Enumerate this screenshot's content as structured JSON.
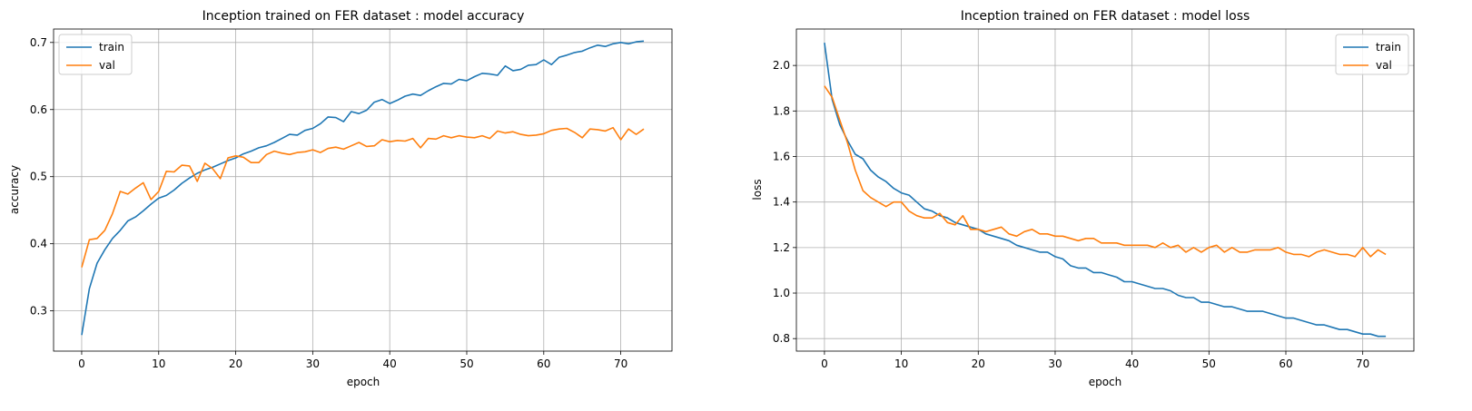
{
  "chart_data": [
    {
      "type": "line",
      "title": "Inception trained on FER dataset : model accuracy",
      "xlabel": "epoch",
      "ylabel": "accuracy",
      "xlim": [
        -3.65,
        76.65
      ],
      "ylim": [
        0.24,
        0.72
      ],
      "xticks": [
        0,
        10,
        20,
        30,
        40,
        50,
        60,
        70
      ],
      "yticks": [
        0.3,
        0.4,
        0.5,
        0.6,
        0.7
      ],
      "ytick_labels": [
        "0.3",
        "0.4",
        "0.5",
        "0.6",
        "0.7"
      ],
      "grid": true,
      "legend_position": "upper-left",
      "series": [
        {
          "name": "train",
          "color": "#1f77b4",
          "values": [
            0.264,
            0.333,
            0.371,
            0.391,
            0.408,
            0.42,
            0.434,
            0.44,
            0.449,
            0.459,
            0.468,
            0.472,
            0.48,
            0.49,
            0.498,
            0.505,
            0.51,
            0.514,
            0.519,
            0.524,
            0.528,
            0.534,
            0.538,
            0.543,
            0.546,
            0.551,
            0.557,
            0.563,
            0.562,
            0.569,
            0.572,
            0.579,
            0.589,
            0.588,
            0.582,
            0.597,
            0.594,
            0.599,
            0.611,
            0.615,
            0.609,
            0.614,
            0.62,
            0.623,
            0.621,
            0.628,
            0.634,
            0.639,
            0.638,
            0.645,
            0.643,
            0.649,
            0.654,
            0.653,
            0.651,
            0.665,
            0.658,
            0.66,
            0.666,
            0.667,
            0.674,
            0.667,
            0.678,
            0.681,
            0.685,
            0.687,
            0.692,
            0.696,
            0.694,
            0.698,
            0.7,
            0.698,
            0.701,
            0.702
          ]
        },
        {
          "name": "val",
          "color": "#ff7f0e",
          "values": [
            0.365,
            0.406,
            0.408,
            0.42,
            0.445,
            0.478,
            0.474,
            0.483,
            0.491,
            0.466,
            0.478,
            0.508,
            0.507,
            0.517,
            0.516,
            0.493,
            0.52,
            0.512,
            0.497,
            0.528,
            0.531,
            0.529,
            0.521,
            0.521,
            0.533,
            0.538,
            0.535,
            0.533,
            0.536,
            0.537,
            0.54,
            0.536,
            0.542,
            0.544,
            0.541,
            0.546,
            0.551,
            0.545,
            0.546,
            0.555,
            0.552,
            0.554,
            0.553,
            0.557,
            0.543,
            0.557,
            0.556,
            0.561,
            0.558,
            0.561,
            0.559,
            0.558,
            0.561,
            0.557,
            0.568,
            0.565,
            0.567,
            0.563,
            0.561,
            0.562,
            0.564,
            0.569,
            0.571,
            0.572,
            0.566,
            0.558,
            0.571,
            0.57,
            0.568,
            0.573,
            0.555,
            0.571,
            0.563,
            0.571
          ]
        }
      ]
    },
    {
      "type": "line",
      "title": "Inception trained on FER dataset : model loss",
      "xlabel": "epoch",
      "ylabel": "loss",
      "xlim": [
        -3.65,
        76.65
      ],
      "ylim": [
        0.745,
        2.16
      ],
      "xticks": [
        0,
        10,
        20,
        30,
        40,
        50,
        60,
        70
      ],
      "yticks": [
        0.8,
        1.0,
        1.2,
        1.4,
        1.6,
        1.8,
        2.0
      ],
      "ytick_labels": [
        "0.8",
        "1.0",
        "1.2",
        "1.4",
        "1.6",
        "1.8",
        "2.0"
      ],
      "grid": true,
      "legend_position": "upper-right",
      "series": [
        {
          "name": "train",
          "color": "#1f77b4",
          "values": [
            2.1,
            1.85,
            1.74,
            1.67,
            1.61,
            1.59,
            1.54,
            1.51,
            1.49,
            1.46,
            1.44,
            1.43,
            1.4,
            1.37,
            1.36,
            1.34,
            1.33,
            1.31,
            1.3,
            1.29,
            1.28,
            1.26,
            1.25,
            1.24,
            1.23,
            1.21,
            1.2,
            1.19,
            1.18,
            1.18,
            1.16,
            1.15,
            1.12,
            1.11,
            1.11,
            1.09,
            1.09,
            1.08,
            1.07,
            1.05,
            1.05,
            1.04,
            1.03,
            1.02,
            1.02,
            1.01,
            0.99,
            0.98,
            0.98,
            0.96,
            0.96,
            0.95,
            0.94,
            0.94,
            0.93,
            0.92,
            0.92,
            0.92,
            0.91,
            0.9,
            0.89,
            0.89,
            0.88,
            0.87,
            0.86,
            0.86,
            0.85,
            0.84,
            0.84,
            0.83,
            0.82,
            0.82,
            0.81,
            0.81
          ]
        },
        {
          "name": "val",
          "color": "#ff7f0e",
          "values": [
            1.91,
            1.86,
            1.76,
            1.66,
            1.54,
            1.45,
            1.42,
            1.4,
            1.38,
            1.4,
            1.4,
            1.36,
            1.34,
            1.33,
            1.33,
            1.35,
            1.31,
            1.3,
            1.34,
            1.28,
            1.28,
            1.27,
            1.28,
            1.29,
            1.26,
            1.25,
            1.27,
            1.28,
            1.26,
            1.26,
            1.25,
            1.25,
            1.24,
            1.23,
            1.24,
            1.24,
            1.22,
            1.22,
            1.22,
            1.21,
            1.21,
            1.21,
            1.21,
            1.2,
            1.22,
            1.2,
            1.21,
            1.18,
            1.2,
            1.18,
            1.2,
            1.21,
            1.18,
            1.2,
            1.18,
            1.18,
            1.19,
            1.19,
            1.19,
            1.2,
            1.18,
            1.17,
            1.17,
            1.16,
            1.18,
            1.19,
            1.18,
            1.17,
            1.17,
            1.16,
            1.2,
            1.16,
            1.19,
            1.17
          ]
        }
      ]
    }
  ]
}
